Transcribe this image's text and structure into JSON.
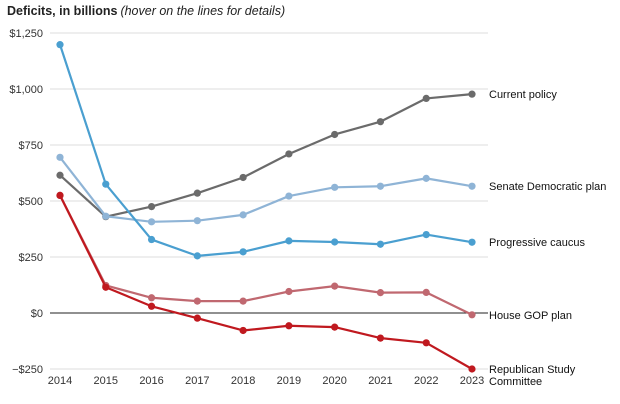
{
  "title": {
    "main": "Deficits, in billions",
    "sub": "(hover on the lines for details)"
  },
  "chart_data": {
    "type": "line",
    "title": "Deficits, in billions",
    "subtitle": "(hover on the lines for details)",
    "x": [
      "2014",
      "2015",
      "2016",
      "2017",
      "2018",
      "2019",
      "2020",
      "2021",
      "2022",
      "2023"
    ],
    "ylim": [
      -250,
      1250
    ],
    "yticks": [
      -250,
      0,
      250,
      500,
      750,
      1000,
      1250
    ],
    "ytick_labels": [
      "−$250",
      "$0",
      "$250",
      "$500",
      "$750",
      "$1,000",
      "$1,250"
    ],
    "grid": true,
    "legend": "labels at right end of lines",
    "series": [
      {
        "name": "Current policy",
        "color": "#6b6b6b",
        "values": [
          615,
          430,
          475,
          535,
          605,
          710,
          797,
          854,
          958,
          977
        ]
      },
      {
        "name": "Senate Democratic plan",
        "color": "#8fb4d6",
        "values": [
          695,
          432,
          407,
          412,
          438,
          522,
          561,
          566,
          601,
          566
        ]
      },
      {
        "name": "Progressive caucus",
        "color": "#4a9fd0",
        "values": [
          1198,
          575,
          328,
          255,
          273,
          322,
          317,
          307,
          350,
          316
        ]
      },
      {
        "name": "House GOP plan",
        "color": "#c06870",
        "values": [
          525,
          123,
          68,
          53,
          53,
          96,
          120,
          91,
          92,
          -8
        ]
      },
      {
        "name": "Republican Study Committee",
        "color": "#c0191f",
        "values": [
          525,
          115,
          30,
          -23,
          -78,
          -57,
          -63,
          -112,
          -133,
          -250
        ]
      }
    ]
  }
}
